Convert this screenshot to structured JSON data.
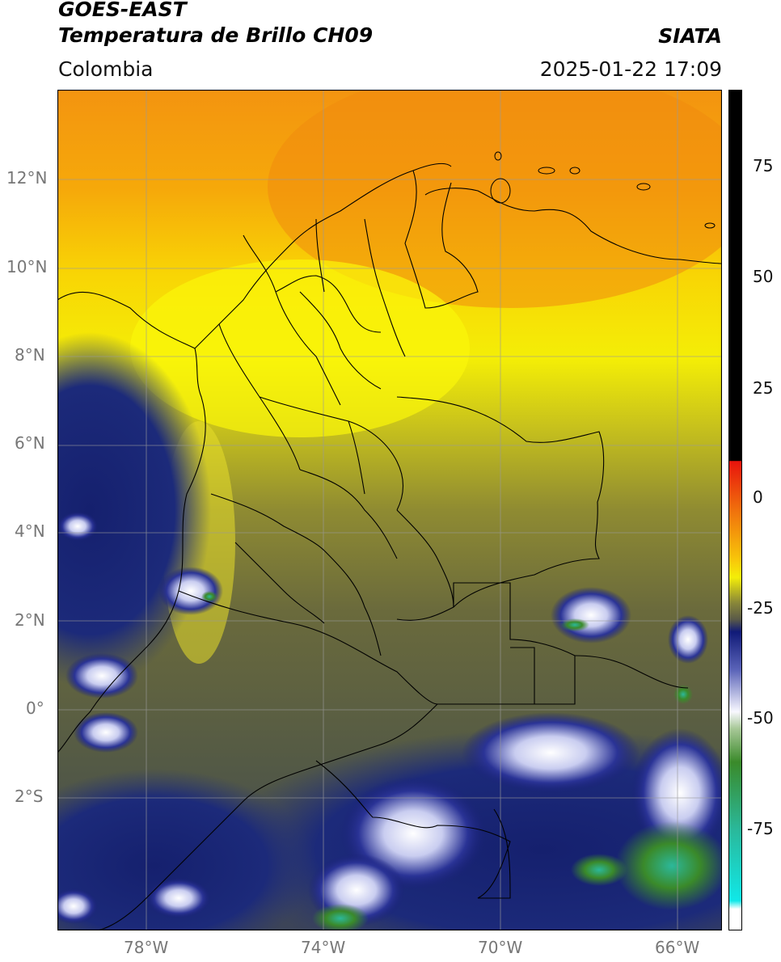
{
  "header": {
    "title_line1": "GOES-EAST",
    "title_line2": "Temperatura de Brillo CH09",
    "region": "Colombia",
    "brand": "SIATA",
    "datetime": "2025-01-22 17:09"
  },
  "map": {
    "lat_labels": [
      "12°N",
      "10°N",
      "8°N",
      "6°N",
      "4°N",
      "2°N",
      "0°",
      "2°S"
    ],
    "lon_labels": [
      "78°W",
      "74°W",
      "70°W",
      "66°W"
    ],
    "extent": {
      "lon_min": -80,
      "lon_max": -65,
      "lat_min": -5,
      "lat_max": 14
    },
    "colors": {
      "orange": "#f59a10",
      "yellow": "#f2ea08",
      "olive": "#6b6b3a",
      "navy": "#18207a",
      "white": "#f4f4ff",
      "green": "#3a8a2a",
      "teal": "#2ab89a"
    }
  },
  "colorbar": {
    "ticks": [
      "75",
      "50",
      "25",
      "0",
      "-25",
      "-50",
      "-75"
    ],
    "range": [
      -95,
      90
    ]
  }
}
